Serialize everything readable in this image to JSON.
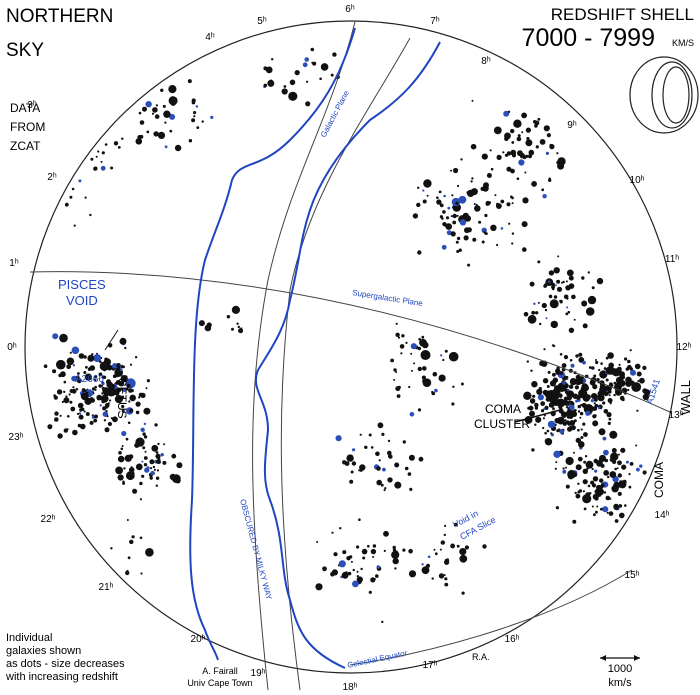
{
  "header": {
    "title_line1": "NORTHERN",
    "title_line2": "SKY",
    "shell_label": "REDSHIFT SHELL",
    "shell_range": "7000 - 7999",
    "shell_unit": "KM/S"
  },
  "source": [
    "DATA",
    "FROM",
    "ZCAT"
  ],
  "hours": [
    "0ʰ",
    "1ʰ",
    "2ʰ",
    "3ʰ",
    "4ʰ",
    "5ʰ",
    "6ʰ",
    "7ʰ",
    "8ʰ",
    "9ʰ",
    "10ʰ",
    "11ʰ",
    "12ʰ",
    "13ʰ",
    "14ʰ",
    "15ʰ",
    "16ʰ",
    "17ʰ",
    "18ʰ",
    "19ʰ",
    "20ʰ",
    "21ʰ",
    "22ʰ",
    "23ʰ"
  ],
  "labels": {
    "galactic_plane": "Galactic Plane",
    "supergalactic_plane": "Supergalactic Plane",
    "pisces": "PISCES",
    "void": "VOID",
    "a2666": "A2666",
    "cetus": "CETUS",
    "coma": "COMA",
    "cluster": "CLUSTER",
    "a1541": "A1541",
    "wall": "WALL",
    "coma_wall": "COMA",
    "void_in": "Void in",
    "cfa_slice": "CFA Slice",
    "obscured": "OBSCURED BY MILKY WAY",
    "celestial_equator": "Celestial Equator",
    "ra": "R.A."
  },
  "legend": {
    "note": [
      "Individual",
      "galaxies shown",
      "as dots - size decreases",
      "with increasing redshift"
    ],
    "scale": "1000",
    "scale_unit": "km/s"
  },
  "credit": [
    "A. Fairall",
    "Univ Cape Town"
  ]
}
